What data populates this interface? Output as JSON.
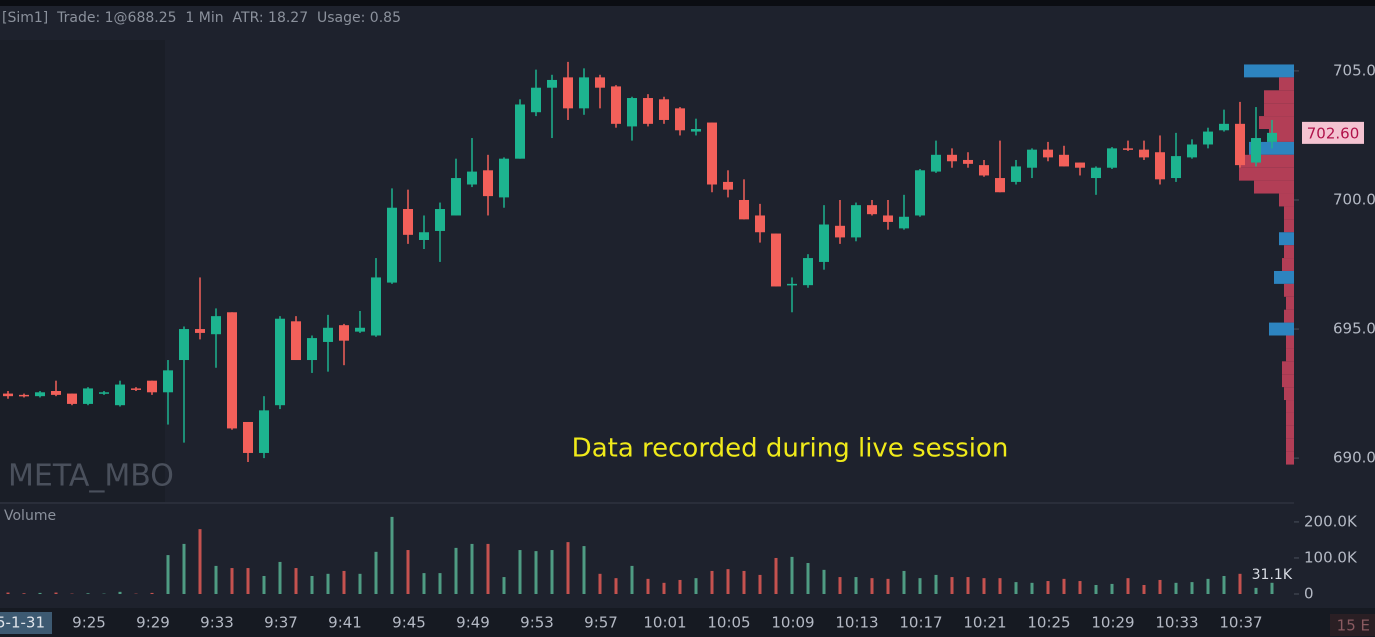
{
  "header": "[Sim1]  Trade: 1@688.25  1 Min  ATR: 18.27  Usage: 0.85",
  "symbol_watermark": "META_MBO",
  "annotation": "Data recorded during live session",
  "date_label": "5-1-31",
  "corner_label": "15 E",
  "chart_data": [
    {
      "type": "candlestick",
      "up_color": "#1db38f",
      "down_color": "#f2605a",
      "open": [
        692.5,
        692.45,
        692.4,
        692.6,
        692.5,
        692.1,
        692.5,
        692.05,
        692.7,
        693.0,
        692.55,
        693.8,
        695.0,
        694.8,
        695.65,
        691.4,
        690.2,
        692.05,
        695.3,
        693.8,
        694.5,
        695.15,
        694.9,
        694.75,
        696.8,
        699.65,
        698.45,
        698.8,
        699.4,
        700.6,
        701.15,
        700.1,
        701.6,
        703.4,
        704.35,
        704.75,
        703.55,
        704.75,
        704.4,
        702.85,
        703.95,
        703.9,
        703.55,
        702.65,
        703.0,
        700.7,
        700.0,
        699.4,
        698.7,
        696.7,
        696.7,
        697.6,
        699.0,
        698.55,
        699.8,
        699.4,
        698.9,
        699.4,
        701.1,
        701.75,
        701.55,
        701.35,
        700.85,
        700.7,
        701.25,
        701.95,
        701.75,
        701.45,
        700.85,
        701.25,
        702.0,
        701.95,
        701.85,
        700.85,
        701.65,
        702.15,
        702.7,
        702.95,
        701.45,
        702.25
      ],
      "high": [
        692.6,
        692.5,
        692.6,
        693.0,
        692.5,
        692.75,
        692.6,
        693.0,
        692.75,
        693.0,
        693.8,
        695.1,
        697.0,
        695.8,
        695.65,
        691.4,
        692.4,
        695.5,
        695.5,
        694.75,
        695.55,
        695.2,
        695.7,
        697.75,
        700.45,
        700.4,
        699.4,
        699.9,
        701.6,
        702.4,
        701.75,
        701.65,
        703.9,
        705.05,
        704.85,
        705.35,
        705.1,
        704.85,
        704.45,
        704.0,
        704.1,
        704.0,
        703.6,
        703.15,
        703.0,
        701.15,
        700.8,
        699.85,
        698.7,
        697.0,
        697.9,
        699.8,
        700.0,
        699.9,
        700.0,
        700.0,
        700.2,
        701.2,
        702.3,
        702.0,
        701.85,
        701.55,
        702.3,
        701.55,
        702.0,
        702.25,
        702.1,
        701.45,
        701.3,
        702.05,
        702.3,
        702.3,
        702.5,
        702.6,
        702.35,
        702.8,
        703.5,
        703.8,
        703.6,
        703.1
      ],
      "low": [
        692.3,
        692.35,
        692.35,
        692.4,
        692.05,
        692.05,
        692.45,
        692.0,
        692.6,
        692.45,
        691.3,
        690.6,
        694.6,
        693.5,
        691.1,
        689.85,
        690.0,
        691.9,
        693.8,
        693.3,
        693.35,
        693.6,
        694.85,
        694.7,
        696.75,
        698.3,
        698.1,
        697.6,
        699.4,
        700.5,
        699.4,
        699.7,
        701.6,
        703.25,
        702.4,
        703.1,
        703.3,
        703.55,
        702.8,
        702.3,
        702.85,
        702.95,
        702.5,
        702.5,
        700.3,
        700.1,
        699.25,
        698.35,
        696.65,
        695.65,
        696.6,
        697.3,
        698.3,
        698.4,
        699.4,
        698.85,
        698.85,
        699.35,
        701.05,
        701.25,
        701.25,
        700.9,
        700.3,
        700.6,
        700.85,
        701.5,
        701.3,
        700.95,
        700.2,
        701.2,
        701.9,
        701.55,
        700.6,
        700.7,
        701.6,
        702.0,
        702.65,
        701.25,
        701.3,
        702.0
      ],
      "close": [
        692.4,
        692.4,
        692.55,
        692.45,
        692.1,
        692.7,
        692.55,
        692.85,
        692.65,
        692.55,
        693.4,
        695.0,
        694.85,
        695.5,
        691.15,
        690.2,
        691.85,
        695.4,
        693.8,
        694.65,
        695.05,
        694.55,
        695.05,
        697.0,
        699.7,
        698.65,
        698.75,
        699.65,
        700.85,
        701.1,
        700.15,
        701.6,
        703.7,
        704.35,
        704.65,
        703.55,
        704.75,
        704.35,
        702.95,
        703.95,
        702.95,
        703.1,
        702.7,
        702.75,
        700.6,
        700.4,
        699.25,
        698.75,
        696.65,
        696.75,
        697.75,
        699.05,
        698.55,
        699.8,
        699.45,
        699.15,
        699.35,
        701.15,
        701.75,
        701.5,
        701.4,
        700.95,
        700.3,
        701.3,
        701.95,
        701.65,
        701.3,
        701.25,
        701.25,
        702.0,
        701.95,
        701.65,
        700.8,
        701.7,
        702.15,
        702.65,
        702.95,
        701.35,
        702.4,
        702.6
      ],
      "last_price_label": "702.60",
      "ylim": [
        688.3,
        707.36
      ],
      "yticks": [
        {
          "value": 690,
          "label": "690.00"
        },
        {
          "value": 695,
          "label": "695.00"
        },
        {
          "value": 700,
          "label": "700.00"
        },
        {
          "value": 705,
          "label": "705.00"
        }
      ],
      "volume_profile": {
        "prices": [
          705,
          704.5,
          704,
          703.5,
          703,
          702.5,
          702,
          701.5,
          701,
          700.5,
          700,
          699.5,
          699,
          698.5,
          698,
          697.5,
          697,
          696.5,
          696,
          695.5,
          695,
          694.5,
          694,
          693.5,
          693,
          692.5,
          692,
          691.5,
          691,
          690.5,
          690
        ],
        "values": [
          50,
          15,
          30,
          30,
          35,
          25,
          45,
          55,
          55,
          40,
          15,
          10,
          10,
          15,
          10,
          12,
          20,
          10,
          8,
          10,
          25,
          8,
          8,
          12,
          12,
          10,
          8,
          8,
          8,
          8,
          8
        ],
        "blue_levels": [
          705,
          702,
          698.5,
          697,
          695
        ],
        "color": "#c2415b",
        "blue_color": "#2f8fcf"
      }
    },
    {
      "type": "bar",
      "title": "Volume",
      "up_color": "#4f9c83",
      "down_color": "#c5524f",
      "categories": [
        null,
        null,
        null,
        null,
        null,
        "9:25",
        null,
        null,
        null,
        "9:29",
        null,
        null,
        null,
        "9:33",
        null,
        null,
        null,
        "9:37",
        null,
        null,
        null,
        "9:41",
        null,
        null,
        null,
        "9:45",
        null,
        null,
        null,
        "9:49",
        null,
        null,
        null,
        "9:53",
        null,
        null,
        null,
        "9:57",
        null,
        null,
        null,
        "10:01",
        null,
        null,
        null,
        "10:05",
        null,
        null,
        null,
        "10:09",
        null,
        null,
        null,
        "10:13",
        null,
        null,
        null,
        "10:17",
        null,
        null,
        null,
        "10:21",
        null,
        null,
        null,
        "10:25",
        null,
        null,
        null,
        "10:29",
        null,
        null,
        null,
        "10:33",
        null,
        null,
        null,
        "10:37",
        null,
        null
      ],
      "values": [
        4000,
        2000,
        3000,
        4000,
        1000,
        2000,
        1000,
        6000,
        1000,
        3000,
        108000,
        139000,
        180000,
        78000,
        72000,
        72000,
        50000,
        89000,
        72000,
        50000,
        56000,
        64000,
        56000,
        117000,
        214000,
        122000,
        58000,
        58000,
        128000,
        139000,
        139000,
        47000,
        122000,
        119000,
        122000,
        144000,
        133000,
        56000,
        44000,
        78000,
        42000,
        31000,
        39000,
        44000,
        64000,
        69000,
        64000,
        53000,
        100000,
        103000,
        86000,
        67000,
        47000,
        47000,
        44000,
        42000,
        64000,
        44000,
        53000,
        47000,
        47000,
        44000,
        44000,
        33000,
        31000,
        36000,
        42000,
        36000,
        25000,
        28000,
        44000,
        25000,
        39000,
        31000,
        33000,
        42000,
        50000,
        56000,
        17000,
        31100
      ],
      "last_value_label": "31.1K",
      "ylim": [
        0,
        247000
      ],
      "yticks": [
        0,
        {
          "value": 100000,
          "label": "100.0K"
        },
        {
          "value": 200000,
          "label": "200.0K"
        }
      ]
    }
  ]
}
